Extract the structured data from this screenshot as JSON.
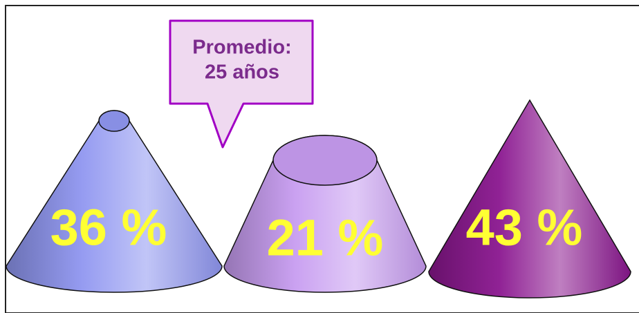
{
  "chart_data": {
    "type": "cone",
    "values": [
      36,
      21,
      43
    ],
    "value_labels": [
      "36 %",
      "21 %",
      "43 %"
    ],
    "colors": [
      "#8f96f0",
      "#c79cf0",
      "#8a168f"
    ],
    "label_color": "#ffff33",
    "annotation": [
      "Promedio:",
      "25 años"
    ]
  }
}
